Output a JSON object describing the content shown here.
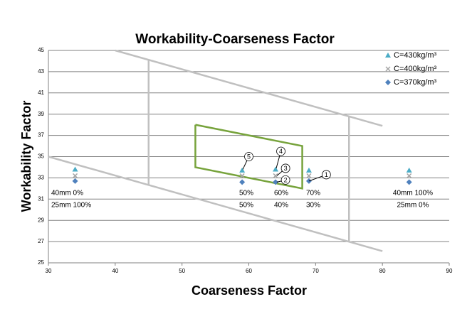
{
  "chart_data": {
    "type": "scatter",
    "title": "Workability-Coarseness Factor",
    "x_label": "Coarseness Factor",
    "y_label": "Workability Factor",
    "xlim": [
      30,
      90
    ],
    "xticks": [
      30,
      40,
      50,
      60,
      70,
      80,
      90
    ],
    "ylim": [
      25,
      45
    ],
    "yticks": [
      25,
      27,
      29,
      31,
      33,
      35,
      37,
      39,
      41,
      43,
      45
    ],
    "grid": true,
    "legend": "top-right",
    "x": [
      34,
      59,
      64,
      69,
      84
    ],
    "series": [
      {
        "name": "C=430kg/m³",
        "color": "#4bacc6",
        "marker": "triangle",
        "values": [
          33.8,
          33.7,
          33.8,
          33.7,
          33.7
        ]
      },
      {
        "name": "C=400kg/m³",
        "color": "#a5a5a5",
        "marker": "x",
        "values": [
          33.2,
          33.2,
          33.2,
          33.2,
          33.2
        ]
      },
      {
        "name": "C=370kg/m³",
        "color": "#4f81bd",
        "marker": "diamond",
        "values": [
          32.7,
          32.6,
          32.6,
          32.7,
          32.6
        ]
      }
    ],
    "shapes": [
      {
        "color": "#c0c0c0",
        "x": [
          40,
          80
        ],
        "y": [
          45,
          37.9
        ]
      },
      {
        "color": "#c0c0c0",
        "x": [
          30,
          80
        ],
        "y": [
          35,
          26.1
        ]
      },
      {
        "color": "#c0c0c0",
        "x": [
          45,
          45
        ],
        "y": [
          44.1,
          32.3
        ]
      },
      {
        "color": "#c0c0c0",
        "x": [
          75,
          75
        ],
        "y": [
          38.8,
          27
        ]
      },
      {
        "color": "#77a33c",
        "x": [
          52,
          68,
          68,
          52,
          52
        ],
        "y": [
          38,
          36,
          32,
          34,
          38
        ]
      }
    ],
    "annotations": [
      "40mm 0%",
      "25mm 100%",
      "50%",
      "50%",
      "60%",
      "40%",
      "70%",
      "30%",
      "40mm 100%",
      "25mm 0%"
    ],
    "point_labels": [
      "1",
      "2",
      "3",
      "4",
      "5"
    ]
  }
}
